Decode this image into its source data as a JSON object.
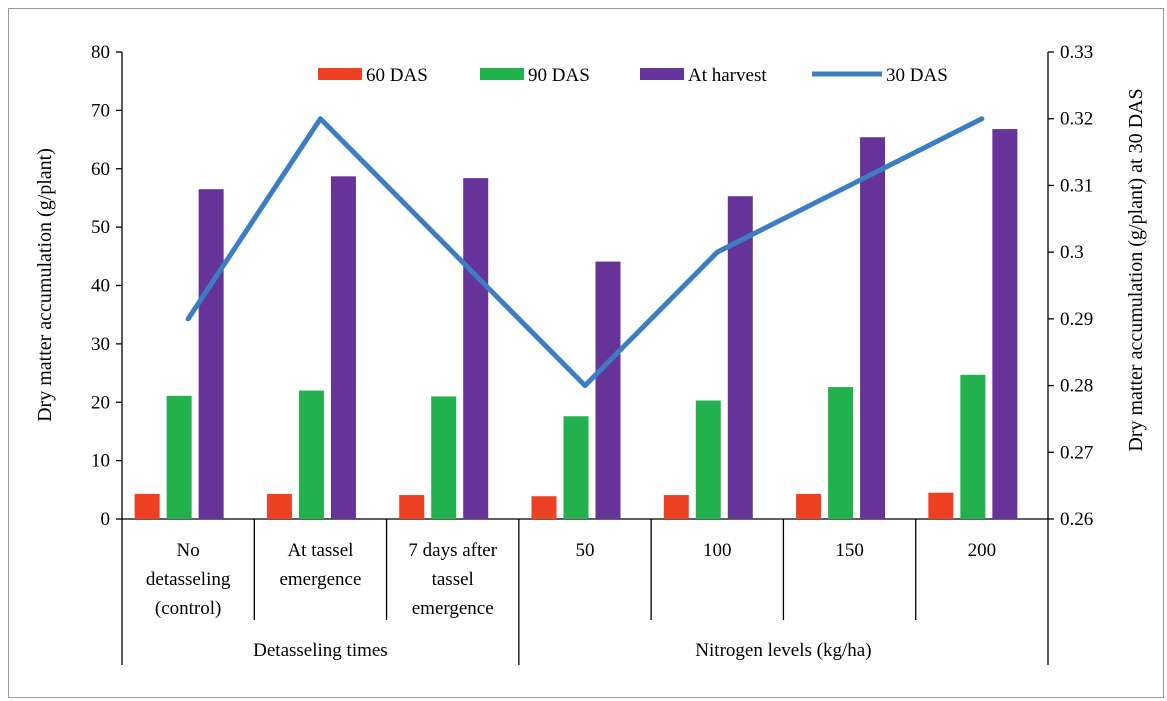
{
  "chart_data": {
    "type": "bar",
    "categories": [
      [
        "No",
        "detasseling",
        "(control)"
      ],
      [
        "At tassel",
        "emergence"
      ],
      [
        "7 days after",
        "tassel",
        "emergence"
      ],
      [
        "50"
      ],
      [
        "100"
      ],
      [
        "150"
      ],
      [
        "200"
      ]
    ],
    "groups": [
      {
        "label": "Detasseling times",
        "start": 0,
        "end": 3
      },
      {
        "label": "Nitrogen levels (kg/ha)",
        "start": 3,
        "end": 7
      }
    ],
    "series": [
      {
        "name": "60 DAS",
        "color": "#ee4023",
        "values": [
          4.3,
          4.3,
          4.1,
          3.9,
          4.1,
          4.3,
          4.5
        ]
      },
      {
        "name": "90 DAS",
        "color": "#22b14c",
        "values": [
          21.1,
          22.0,
          21.0,
          17.6,
          20.3,
          22.6,
          24.7
        ]
      },
      {
        "name": "At harvest",
        "color": "#663399",
        "values": [
          56.5,
          58.7,
          58.4,
          44.1,
          55.3,
          65.4,
          66.8
        ]
      }
    ],
    "line_series": {
      "name": "30 DAS",
      "color": "#3d7dc4",
      "axis": "right",
      "values": [
        0.29,
        0.32,
        0.3,
        0.28,
        0.3,
        0.31,
        0.32
      ]
    },
    "ylabel": "Dry matter accumulation (g/plant)",
    "y2label": "Dry matter accumulation (g/plant) at 30 DAS",
    "ylim": [
      0,
      80
    ],
    "yticks": [
      "0",
      "10",
      "20",
      "30",
      "40",
      "50",
      "60",
      "70",
      "80"
    ],
    "y2lim": [
      0.26,
      0.33
    ],
    "y2ticks": [
      "0.26",
      "0.27",
      "0.28",
      "0.29",
      "0.3",
      "0.31",
      "0.32",
      "0.33"
    ],
    "grid": false,
    "legend_position": "top",
    "legend_order": [
      "60 DAS",
      "90 DAS",
      "At harvest",
      "30 DAS"
    ]
  }
}
